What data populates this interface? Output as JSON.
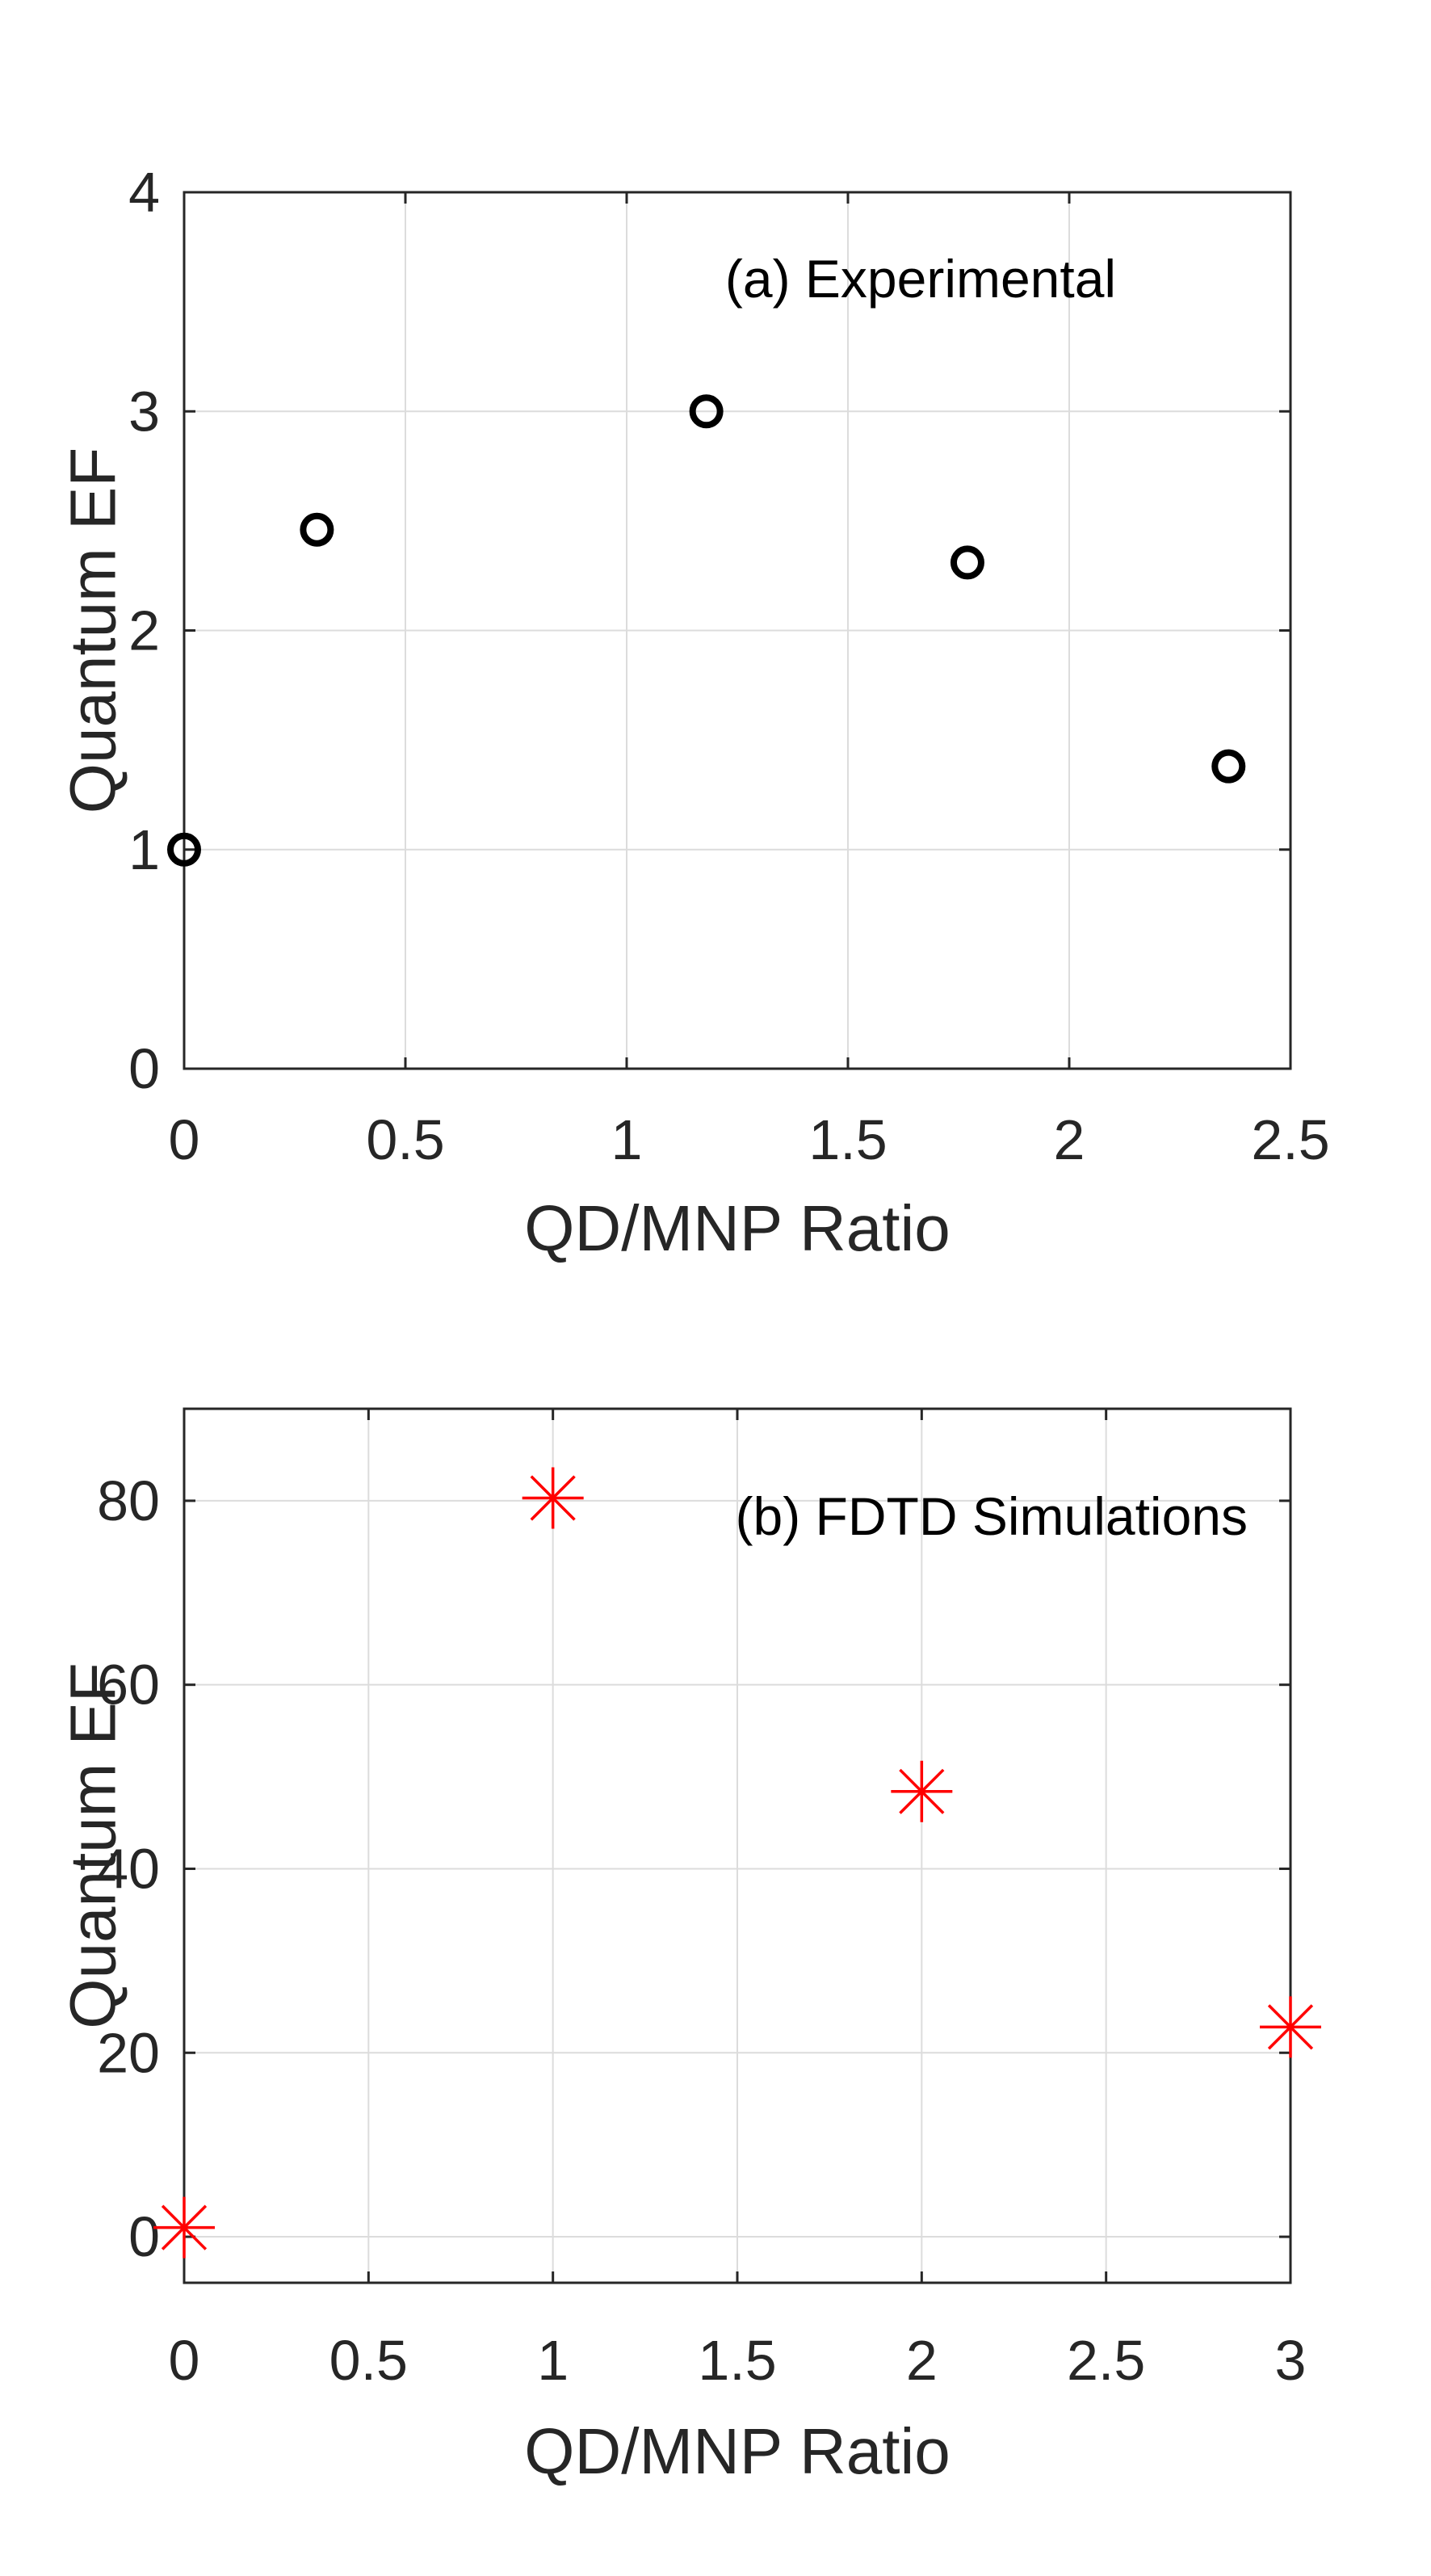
{
  "chart_data": [
    {
      "type": "scatter",
      "title": "",
      "annotation": "(a) Experimental",
      "xlabel": "QD/MNP Ratio",
      "ylabel": "Quantum EF",
      "xlim": [
        0,
        2.5
      ],
      "ylim": [
        0,
        4
      ],
      "xticks": [
        0,
        0.5,
        1,
        1.5,
        2,
        2.5
      ],
      "yticks": [
        0,
        1,
        2,
        3,
        4
      ],
      "xtick_labels": [
        "0",
        "0.5",
        "1",
        "1.5",
        "2",
        "2.5"
      ],
      "ytick_labels": [
        "0",
        "1",
        "2",
        "3",
        "4"
      ],
      "grid": true,
      "marker": "circle",
      "color": "#000000",
      "series": [
        {
          "name": "Experimental",
          "x": [
            0,
            0.3,
            1.18,
            1.77,
            2.36
          ],
          "y": [
            1.0,
            2.46,
            3.0,
            2.31,
            1.38
          ]
        }
      ]
    },
    {
      "type": "scatter",
      "title": "",
      "annotation": "(b) FDTD Simulations",
      "xlabel": "QD/MNP Ratio",
      "ylabel": "Quantum EF",
      "xlim": [
        0,
        3
      ],
      "ylim": [
        -5,
        90
      ],
      "xticks": [
        0,
        0.5,
        1,
        1.5,
        2,
        2.5,
        3
      ],
      "yticks": [
        0,
        20,
        40,
        60,
        80
      ],
      "xtick_labels": [
        "0",
        "0.5",
        "1",
        "1.5",
        "2",
        "2.5",
        "3"
      ],
      "ytick_labels": [
        "0",
        "20",
        "40",
        "60",
        "80"
      ],
      "grid": true,
      "marker": "asterisk",
      "color": "#ff0000",
      "series": [
        {
          "name": "FDTD Simulations",
          "x": [
            0,
            1,
            2,
            3
          ],
          "y": [
            1,
            80.3,
            48.4,
            22.8
          ]
        }
      ]
    }
  ]
}
